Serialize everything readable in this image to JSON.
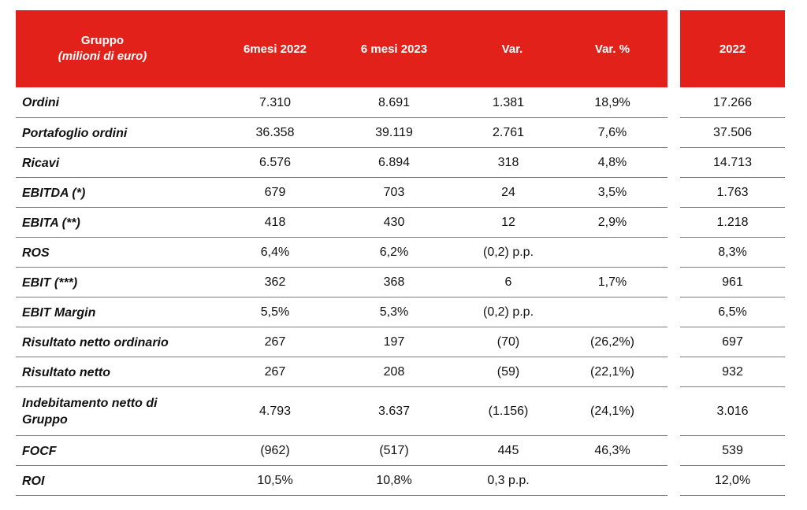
{
  "header": {
    "group_title": "Gruppo",
    "group_subtitle": "(milioni di euro)",
    "col_h1_2022": "6mesi 2022",
    "col_h1_2023": "6 mesi 2023",
    "col_var": "Var.",
    "col_var_pct": "Var. %",
    "col_year": "2022"
  },
  "rows": [
    {
      "label": "Ordini",
      "h1_2022": "7.310",
      "h1_2023": "8.691",
      "var": "1.381",
      "var_pct": "18,9%",
      "year": "17.266"
    },
    {
      "label": "Portafoglio ordini",
      "h1_2022": "36.358",
      "h1_2023": "39.119",
      "var": "2.761",
      "var_pct": "7,6%",
      "year": "37.506"
    },
    {
      "label": "Ricavi",
      "h1_2022": "6.576",
      "h1_2023": "6.894",
      "var": "318",
      "var_pct": "4,8%",
      "year": "14.713"
    },
    {
      "label": "EBITDA (*)",
      "h1_2022": "679",
      "h1_2023": "703",
      "var": "24",
      "var_pct": "3,5%",
      "year": "1.763"
    },
    {
      "label": "EBITA (**)",
      "h1_2022": "418",
      "h1_2023": "430",
      "var": "12",
      "var_pct": "2,9%",
      "year": "1.218"
    },
    {
      "label": "ROS",
      "h1_2022": "6,4%",
      "h1_2023": "6,2%",
      "var": "(0,2) p.p.",
      "var_pct": "",
      "year": "8,3%"
    },
    {
      "label": "EBIT (***)",
      "h1_2022": "362",
      "h1_2023": "368",
      "var": "6",
      "var_pct": "1,7%",
      "year": "961"
    },
    {
      "label": "EBIT Margin",
      "h1_2022": "5,5%",
      "h1_2023": "5,3%",
      "var": "(0,2) p.p.",
      "var_pct": "",
      "year": "6,5%"
    },
    {
      "label": "Risultato netto ordinario",
      "h1_2022": "267",
      "h1_2023": "197",
      "var": "(70)",
      "var_pct": "(26,2%)",
      "year": "697"
    },
    {
      "label": "Risultato netto",
      "h1_2022": "267",
      "h1_2023": "208",
      "var": "(59)",
      "var_pct": "(22,1%)",
      "year": "932"
    },
    {
      "label_line1": "Indebitamento netto di",
      "label_line2": "Gruppo",
      "h1_2022": "4.793",
      "h1_2023": "3.637",
      "var": "(1.156)",
      "var_pct": "(24,1%)",
      "year": "3.016"
    },
    {
      "label": "FOCF",
      "h1_2022": "(962)",
      "h1_2023": "(517)",
      "var": "445",
      "var_pct": "46,3%",
      "year": "539"
    },
    {
      "label": "ROI",
      "h1_2022": "10,5%",
      "h1_2023": "10,8%",
      "var": "0,3 p.p.",
      "var_pct": "",
      "year": "12,0%"
    }
  ]
}
